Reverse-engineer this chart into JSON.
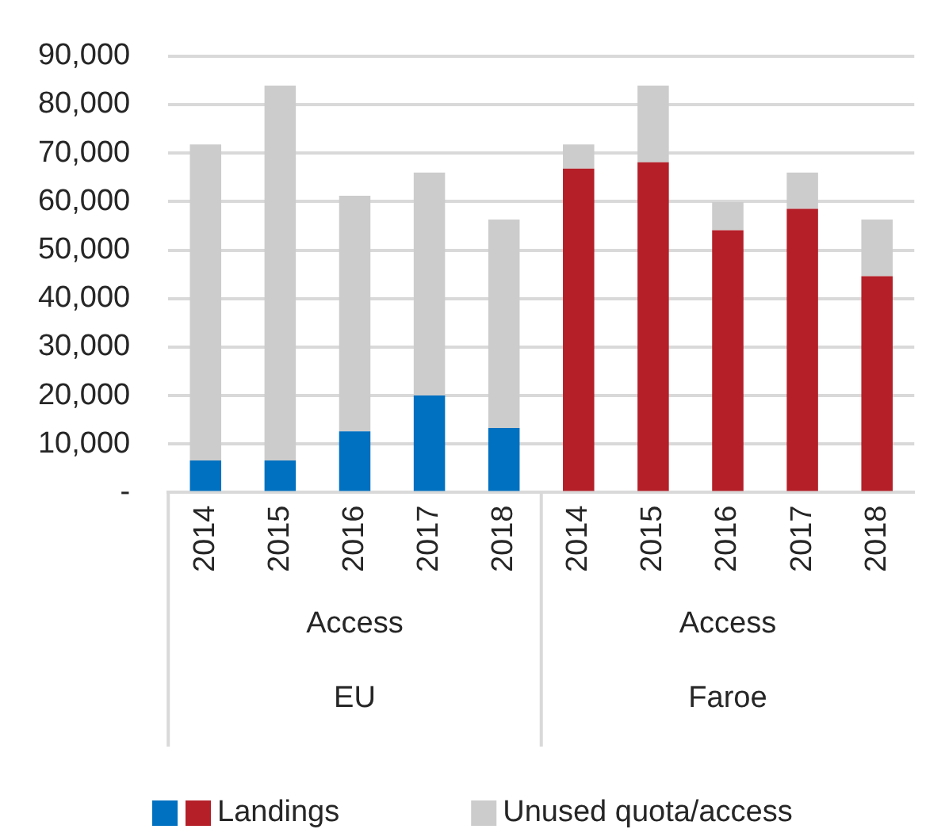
{
  "chart_data": {
    "type": "bar",
    "stacked": true,
    "categories": [
      "2014",
      "2015",
      "2016",
      "2017",
      "2018",
      "2014",
      "2015",
      "2016",
      "2017",
      "2018"
    ],
    "annotations": [
      "Access",
      "EU",
      "Access",
      "Faroe"
    ],
    "series": [
      {
        "name": "Landings",
        "colors": [
          "#0070c0",
          "#0070c0",
          "#0070c0",
          "#0070c0",
          "#0070c0",
          "#b41f28",
          "#b41f28",
          "#b41f28",
          "#b41f28",
          "#b41f28"
        ],
        "values": [
          6600,
          6600,
          12600,
          20000,
          13300,
          66800,
          68100,
          54100,
          58500,
          44600
        ]
      },
      {
        "name": "Unused quota/access",
        "color": "#cccccc",
        "values": [
          65200,
          77300,
          48600,
          46000,
          43000,
          5000,
          15800,
          5800,
          7500,
          11700
        ]
      }
    ],
    "ylim": [
      0,
      90000
    ],
    "yticks": [
      {
        "value": 0,
        "label": "-"
      },
      {
        "value": 10000,
        "label": "10,000"
      },
      {
        "value": 20000,
        "label": "20,000"
      },
      {
        "value": 30000,
        "label": "30,000"
      },
      {
        "value": 40000,
        "label": "40,000"
      },
      {
        "value": 50000,
        "label": "50,000"
      },
      {
        "value": 60000,
        "label": "60,000"
      },
      {
        "value": 70000,
        "label": "70,000"
      },
      {
        "value": 80000,
        "label": "80,000"
      },
      {
        "value": 90000,
        "label": "90,000"
      }
    ],
    "grid": "y",
    "legend": "bottom"
  }
}
